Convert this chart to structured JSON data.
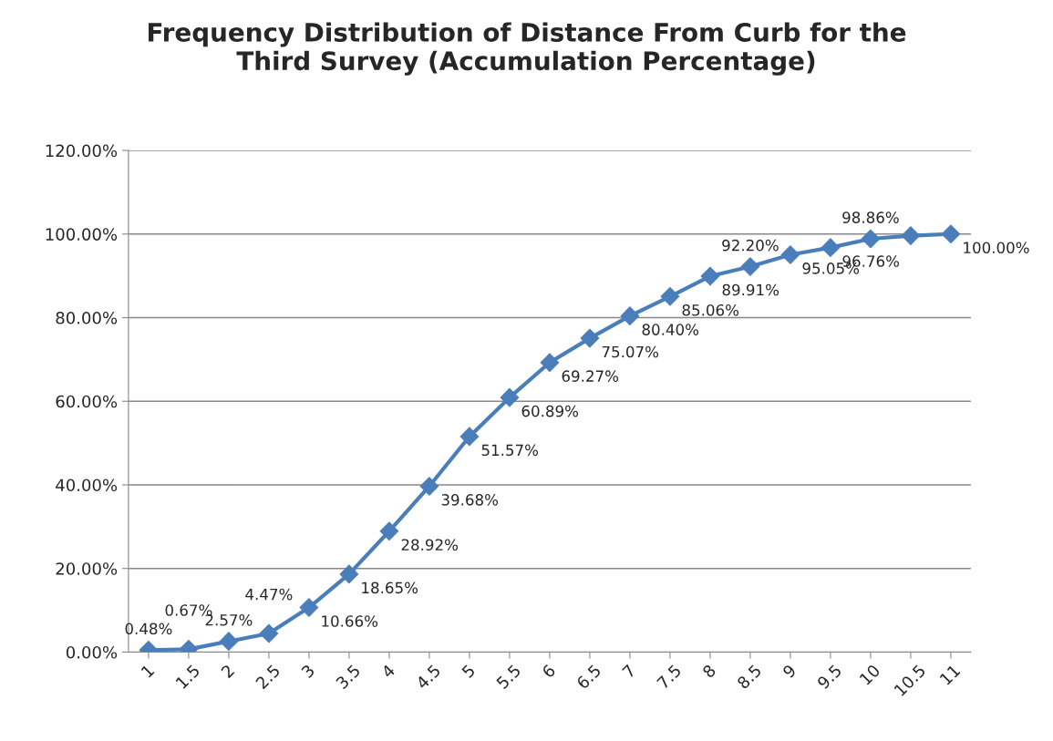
{
  "chart_data": {
    "type": "line",
    "title": "Frequency Distribution of Distance From Curb for the\nThird Survey (Accumulation Percentage)",
    "categories": [
      "1",
      "1.5",
      "2",
      "2.5",
      "3",
      "3.5",
      "4",
      "4.5",
      "5",
      "5.5",
      "6",
      "6.5",
      "7",
      "7.5",
      "8",
      "8.5",
      "9",
      "9.5",
      "10",
      "10.5",
      "11"
    ],
    "series": [
      {
        "color": "#4a7ebb",
        "values": [
          0.48,
          0.67,
          2.57,
          4.47,
          10.66,
          18.65,
          28.92,
          39.68,
          51.57,
          60.89,
          69.27,
          75.07,
          80.4,
          85.06,
          89.91,
          92.2,
          95.05,
          96.76,
          98.86,
          99.6,
          100.0
        ],
        "value_labels": [
          "0.48%",
          "0.67%",
          "2.57%",
          "4.47%",
          "10.66%",
          "18.65%",
          "28.92%",
          "39.68%",
          "51.57%",
          "60.89%",
          "69.27%",
          "75.07%",
          "80.40%",
          "85.06%",
          "89.91%",
          "92.20%",
          "95.05%",
          "96.76%",
          "98.86%",
          null,
          "100.00%"
        ]
      }
    ],
    "ylim": [
      0,
      120
    ],
    "yticks": [
      {
        "value": 0,
        "label": "0.00%"
      },
      {
        "value": 20,
        "label": "20.00%"
      },
      {
        "value": 40,
        "label": "40.00%"
      },
      {
        "value": 60,
        "label": "60.00%"
      },
      {
        "value": 80,
        "label": "80.00%"
      },
      {
        "value": 100,
        "label": "100.00%"
      },
      {
        "value": 120,
        "label": "120.00%"
      }
    ],
    "grid": "y",
    "marker": "diamond",
    "line_style": "solid",
    "legend": false
  }
}
